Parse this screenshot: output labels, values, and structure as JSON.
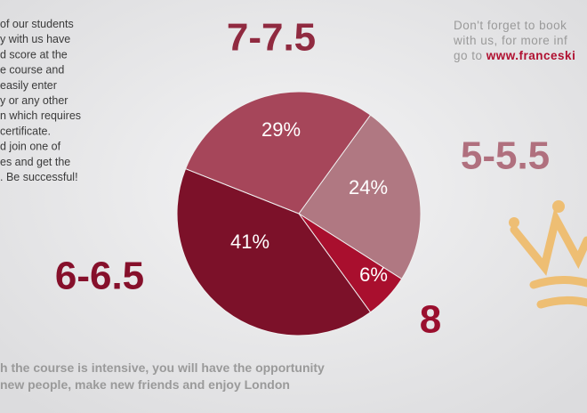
{
  "chart_data": {
    "type": "pie",
    "categories": [
      "5-5.5",
      "8",
      "6-6.5",
      "7-7.5"
    ],
    "values": [
      24,
      6,
      41,
      29
    ],
    "value_labels": [
      "24%",
      "6%",
      "41%",
      "29%"
    ],
    "colors": [
      "#b07882",
      "#a90f2e",
      "#7c1129",
      "#a6465a"
    ],
    "label_colors": [
      "#b0707e",
      "#9a0f2e",
      "#86102b",
      "#902a40"
    ]
  },
  "left_text": [
    "of our students",
    "y with us have",
    "d score at the",
    "e course and",
    "easily enter",
    "y or any other",
    "n which requires",
    "certificate.",
    "d join one of",
    "es and get the",
    ". Be successful!"
  ],
  "right_text": [
    "Don't forget to book",
    "with us, for more inf"
  ],
  "right_link": {
    "prefix": "go to ",
    "link": "www.franceski"
  },
  "bottom_text": [
    "h the course is intensive, you will have the opportunity",
    " new people, make new friends and enjoy London"
  ]
}
